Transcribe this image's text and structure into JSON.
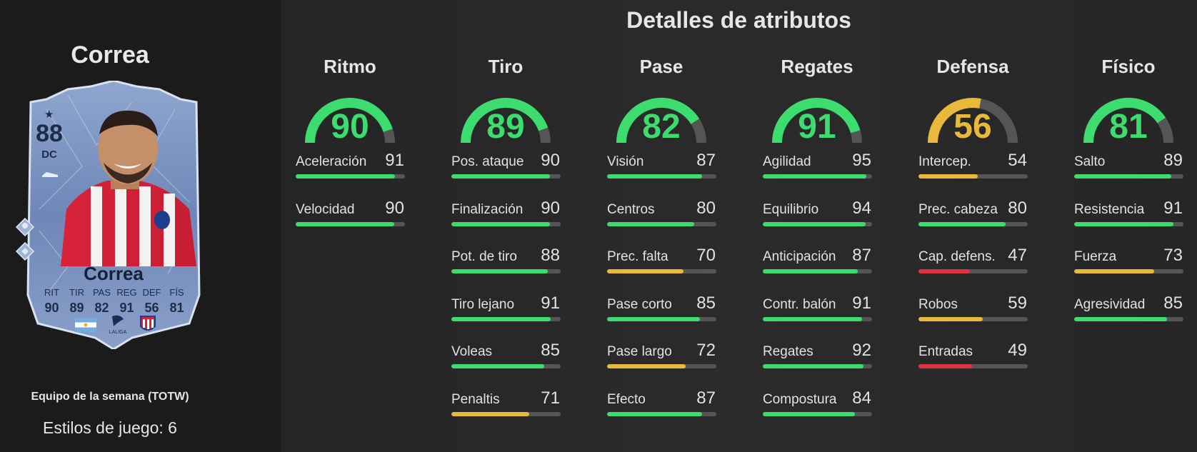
{
  "player": {
    "name": "Correa",
    "rating": "88",
    "position": "DC",
    "card_name": "Correa",
    "card_stats": [
      {
        "label": "RIT",
        "value": "90"
      },
      {
        "label": "TIR",
        "value": "89"
      },
      {
        "label": "PAS",
        "value": "82"
      },
      {
        "label": "REG",
        "value": "91"
      },
      {
        "label": "DEF",
        "value": "56"
      },
      {
        "label": "FÍS",
        "value": "81"
      }
    ],
    "promo": "Equipo de la semana (TOTW)",
    "playstyles": "Estilos de juego: 6",
    "league_badge_text": "LALIGA"
  },
  "section_title": "Detalles de atributos",
  "colors": {
    "green": "#3ddc6e",
    "yellow": "#e8b93a",
    "red": "#e03340",
    "track": "#555555"
  },
  "categories": [
    {
      "title": "Ritmo",
      "value": "90",
      "stats": [
        {
          "name": "Aceleración",
          "value": "91"
        },
        {
          "name": "Velocidad",
          "value": "90"
        }
      ]
    },
    {
      "title": "Tiro",
      "value": "89",
      "stats": [
        {
          "name": "Pos. ataque",
          "value": "90"
        },
        {
          "name": "Finalización",
          "value": "90"
        },
        {
          "name": "Pot. de tiro",
          "value": "88"
        },
        {
          "name": "Tiro lejano",
          "value": "91"
        },
        {
          "name": "Voleas",
          "value": "85"
        },
        {
          "name": "Penaltis",
          "value": "71"
        }
      ]
    },
    {
      "title": "Pase",
      "value": "82",
      "stats": [
        {
          "name": "Visión",
          "value": "87"
        },
        {
          "name": "Centros",
          "value": "80"
        },
        {
          "name": "Prec. falta",
          "value": "70"
        },
        {
          "name": "Pase corto",
          "value": "85"
        },
        {
          "name": "Pase largo",
          "value": "72"
        },
        {
          "name": "Efecto",
          "value": "87"
        }
      ]
    },
    {
      "title": "Regates",
      "value": "91",
      "stats": [
        {
          "name": "Agilidad",
          "value": "95"
        },
        {
          "name": "Equilibrio",
          "value": "94"
        },
        {
          "name": "Anticipación",
          "value": "87"
        },
        {
          "name": "Contr. balón",
          "value": "91"
        },
        {
          "name": "Regates",
          "value": "92"
        },
        {
          "name": "Compostura",
          "value": "84"
        }
      ]
    },
    {
      "title": "Defensa",
      "value": "56",
      "stats": [
        {
          "name": "Intercep.",
          "value": "54"
        },
        {
          "name": "Prec. cabeza",
          "value": "80"
        },
        {
          "name": "Cap. defens.",
          "value": "47"
        },
        {
          "name": "Robos",
          "value": "59"
        },
        {
          "name": "Entradas",
          "value": "49"
        }
      ]
    },
    {
      "title": "Físico",
      "value": "81",
      "stats": [
        {
          "name": "Salto",
          "value": "89"
        },
        {
          "name": "Resistencia",
          "value": "91"
        },
        {
          "name": "Fuerza",
          "value": "73"
        },
        {
          "name": "Agresividad",
          "value": "85"
        }
      ]
    }
  ]
}
